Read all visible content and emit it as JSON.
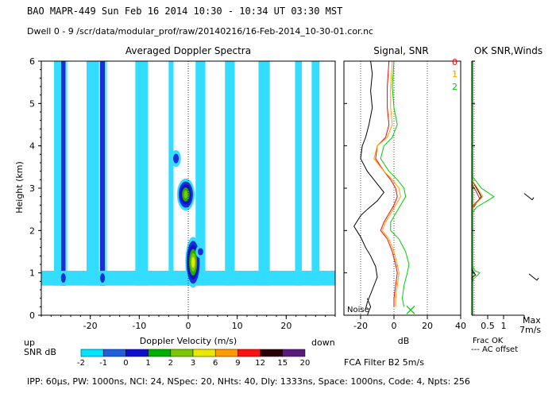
{
  "header": {
    "line1": "BAO   MAPR-449   Sun Feb 16 2014 10:30  -  10:34 UT 03:30 MST",
    "line2": "Dwell   0  -   9    /scr/data/modular_prof/raw/20140216/16-Feb-2014_10-30-01.cor.nc"
  },
  "footer": {
    "params": "IPP:  60µs,   PW: 1000ns,   NCI:  24,   NSpec: 20,  NHts: 40,   Dly: 1333ns,   Space: 1000ns,   Code: 4,   Npts: 256"
  },
  "colors": {
    "levels": [
      "#00e5ff",
      "#1f5fe0",
      "#1010cc",
      "#00b000",
      "#7ac800",
      "#e8e800",
      "#ff9a00",
      "#ff1010",
      "#2a0008",
      "#5a1a7a"
    ],
    "cyan": "#33ddff",
    "darkblue": "#1a2fd6",
    "green": "#22aa00",
    "lime": "#44cc00",
    "snr0": "#ff0000",
    "snr1": "#ffa000",
    "snr2": "#00cc00"
  },
  "chart_data": [
    {
      "type": "heatmap",
      "title": "Averaged Doppler Spectra",
      "xlabel": "Doppler Velocity (m/s)",
      "ylabel": "Height (km)",
      "xlim": [
        -30,
        30
      ],
      "ylim": [
        0,
        6
      ],
      "xticks": [
        -20,
        -10,
        0,
        10,
        20
      ],
      "yticks": [
        0,
        1,
        2,
        3,
        4,
        5,
        6
      ],
      "corner_left": "up",
      "corner_right": "down",
      "colorbar_label": "SNR dB",
      "colorbar_ticks": [
        "-2",
        "-1",
        "0",
        "1",
        "2",
        "3",
        "6",
        "9",
        "12",
        "15",
        "20"
      ],
      "noise_band_km": [
        0.7,
        1.05
      ],
      "vertical_streaks": [
        {
          "x_center": -25.5,
          "width": 0.9,
          "y_top": 6.0,
          "strength": "strong"
        },
        {
          "x_center": -17.5,
          "width": 1.0,
          "y_top": 6.0,
          "strength": "strong"
        },
        {
          "x_center": -26.5,
          "width": 1.8,
          "y_top": 6.0,
          "strength": "weak"
        },
        {
          "x_center": -19.5,
          "width": 2.5,
          "y_top": 6.0,
          "strength": "weak"
        },
        {
          "x_center": -9.5,
          "width": 2.6,
          "y_top": 6.0,
          "strength": "weak"
        },
        {
          "x_center": -3.5,
          "width": 1.0,
          "y_top": 6.0,
          "strength": "weak"
        },
        {
          "x_center": 2.5,
          "width": 2.0,
          "y_top": 6.0,
          "strength": "weak"
        },
        {
          "x_center": 8.5,
          "width": 2.0,
          "y_top": 6.0,
          "strength": "weak"
        },
        {
          "x_center": 15.5,
          "width": 2.3,
          "y_top": 6.0,
          "strength": "weak"
        },
        {
          "x_center": 22.5,
          "width": 1.4,
          "y_top": 6.0,
          "strength": "weak"
        },
        {
          "x_center": 26.0,
          "width": 1.6,
          "y_top": 6.0,
          "strength": "weak"
        }
      ],
      "echo_blobs": [
        {
          "x": -0.5,
          "y": 2.85,
          "rx": 1.8,
          "ry": 0.38,
          "peak_level": 4
        },
        {
          "x": -2.5,
          "y": 3.7,
          "rx": 1.0,
          "ry": 0.2,
          "peak_level": 1
        },
        {
          "x": 1.0,
          "y": 1.25,
          "rx": 1.6,
          "ry": 0.6,
          "peak_level": 5
        },
        {
          "x": 2.5,
          "y": 1.5,
          "rx": 1.0,
          "ry": 0.15,
          "peak_level": 1
        }
      ]
    },
    {
      "type": "line",
      "title": "Signal, SNR",
      "xlabel": "dB",
      "xlim": [
        -30,
        40
      ],
      "ylim": [
        0,
        6
      ],
      "xticks": [
        -20,
        0,
        20,
        40
      ],
      "legend": [
        "0",
        "1",
        "2"
      ],
      "noise_label": "Noise",
      "x_marker": {
        "x": 10,
        "y": 0.05
      },
      "series": [
        {
          "name": "black",
          "x": [
            -14,
            -13,
            -14,
            -13,
            -15,
            -17,
            -19,
            -20,
            -16,
            -10,
            -6,
            -10,
            -16,
            -20,
            -24,
            -20,
            -17,
            -14,
            -11,
            -10,
            -13,
            -16,
            -17
          ],
          "y": [
            6.0,
            5.7,
            5.3,
            4.9,
            4.5,
            4.2,
            4.0,
            3.7,
            3.4,
            3.1,
            2.9,
            2.7,
            2.5,
            2.35,
            2.1,
            1.85,
            1.6,
            1.4,
            1.15,
            0.9,
            0.6,
            0.3,
            0.15
          ]
        },
        {
          "name": "0",
          "x": [
            -3,
            -4,
            -4,
            -3,
            -5,
            -10,
            -11,
            -6,
            -2,
            1,
            2,
            0,
            -3,
            -6,
            -8,
            -4,
            -1,
            1,
            2,
            1,
            0,
            0
          ],
          "y": [
            6.0,
            5.4,
            4.9,
            4.5,
            4.2,
            4.0,
            3.7,
            3.4,
            3.2,
            3.0,
            2.8,
            2.6,
            2.4,
            2.2,
            2.0,
            1.8,
            1.5,
            1.2,
            1.0,
            0.7,
            0.4,
            0.2
          ]
        },
        {
          "name": "1",
          "x": [
            -1,
            -2,
            -2,
            -1,
            -4,
            -10,
            -12,
            -6,
            -1,
            3,
            4,
            1,
            -2,
            -5,
            -7,
            -3,
            0,
            2,
            3,
            2,
            1,
            1
          ],
          "y": [
            6.0,
            5.4,
            4.9,
            4.5,
            4.2,
            4.0,
            3.7,
            3.4,
            3.2,
            3.0,
            2.8,
            2.6,
            2.4,
            2.2,
            2.0,
            1.8,
            1.5,
            1.2,
            1.0,
            0.7,
            0.4,
            0.2
          ]
        },
        {
          "name": "2",
          "x": [
            0,
            -1,
            0,
            2,
            -1,
            -6,
            -8,
            -3,
            2,
            6,
            7,
            4,
            1,
            -2,
            -2,
            3,
            7,
            9,
            8,
            6,
            5,
            6
          ],
          "y": [
            6.0,
            5.4,
            4.9,
            4.5,
            4.2,
            4.0,
            3.7,
            3.4,
            3.2,
            3.0,
            2.8,
            2.6,
            2.4,
            2.2,
            2.0,
            1.8,
            1.5,
            1.2,
            1.0,
            0.7,
            0.4,
            0.2
          ]
        }
      ],
      "noise_line": {
        "x": [
          -16,
          -15,
          -14,
          -15,
          -16
        ],
        "y": [
          0.0,
          0.1,
          0.2,
          0.3,
          0.4
        ]
      }
    },
    {
      "type": "line",
      "title": "OK SNR,Winds",
      "xlim": [
        0,
        1
      ],
      "xticks": [
        "0.5",
        "1"
      ],
      "xlabel_right": "Max",
      "max_label": "7m/s",
      "legend_frac": "Frac OK",
      "legend_ac": "--- AC offset",
      "fca_text": "FCA Filter B2   5m/s",
      "series": [
        {
          "name": "snr_black",
          "x": [
            0.0,
            0.15,
            0.3,
            0.1,
            0.0
          ],
          "y": [
            3.2,
            3.0,
            2.8,
            2.6,
            2.5
          ]
        },
        {
          "name": "snr_red",
          "x": [
            0.0,
            0.12,
            0.25,
            0.05,
            0.0
          ],
          "y": [
            3.1,
            2.95,
            2.75,
            2.6,
            2.5
          ]
        },
        {
          "name": "snr_orange",
          "x": [
            0.0,
            0.18,
            0.35,
            0.08,
            0.0
          ],
          "y": [
            3.2,
            3.0,
            2.8,
            2.6,
            2.5
          ]
        },
        {
          "name": "snr_green",
          "x": [
            0.0,
            0.3,
            0.7,
            0.15,
            0.0
          ],
          "y": [
            3.3,
            3.0,
            2.8,
            2.55,
            2.4
          ]
        },
        {
          "name": "snr_low_green",
          "x": [
            0.0,
            0.1,
            0.25,
            0.05,
            0.0
          ],
          "y": [
            1.2,
            1.05,
            1.0,
            0.85,
            0.7
          ]
        },
        {
          "name": "snr_low_black",
          "x": [
            0.0,
            0.06,
            0.12,
            0.02,
            0.0
          ],
          "y": [
            1.1,
            1.0,
            0.95,
            0.9,
            0.8
          ]
        }
      ],
      "wind_barbs": [
        {
          "x": 1.8,
          "y": 2.8
        },
        {
          "x": 1.95,
          "y": 0.9
        }
      ]
    }
  ]
}
